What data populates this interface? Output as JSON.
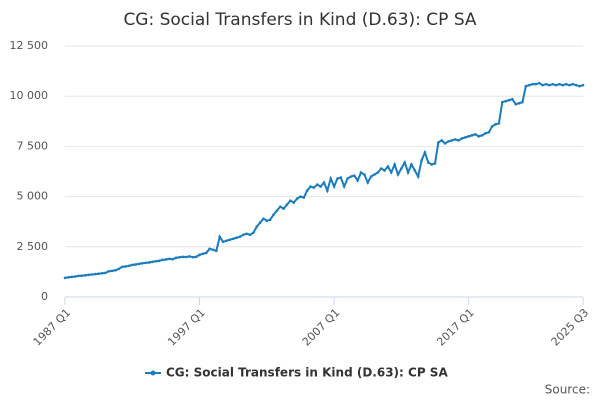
{
  "chart_data": {
    "type": "line",
    "title": "CG: Social Transfers in Kind (D.63): CP SA",
    "source": "Source:",
    "categories": [
      "1987 Q1",
      null,
      null,
      null,
      null,
      null,
      null,
      null,
      null,
      null,
      null,
      null,
      null,
      null,
      null,
      null,
      null,
      null,
      null,
      null,
      null,
      null,
      null,
      null,
      null,
      null,
      null,
      null,
      null,
      null,
      null,
      null,
      null,
      null,
      null,
      null,
      null,
      null,
      null,
      null,
      "1997 Q1",
      null,
      null,
      null,
      null,
      null,
      null,
      null,
      null,
      null,
      null,
      null,
      null,
      null,
      null,
      null,
      null,
      null,
      null,
      null,
      null,
      null,
      null,
      null,
      null,
      null,
      null,
      null,
      null,
      null,
      null,
      null,
      null,
      null,
      null,
      null,
      null,
      null,
      null,
      null,
      "2007 Q1",
      null,
      null,
      null,
      null,
      null,
      null,
      null,
      null,
      null,
      null,
      null,
      null,
      null,
      null,
      null,
      null,
      null,
      null,
      null,
      null,
      null,
      null,
      null,
      null,
      null,
      null,
      null,
      null,
      null,
      null,
      null,
      null,
      null,
      null,
      null,
      null,
      null,
      null,
      null,
      "2017 Q1",
      null,
      null,
      null,
      null,
      null,
      null,
      null,
      null,
      null,
      null,
      null,
      null,
      null,
      null,
      null,
      null,
      null,
      null,
      null,
      null,
      null,
      null,
      null,
      null,
      null,
      null,
      null,
      null,
      null,
      null,
      null,
      null,
      null,
      "2025 Q3"
    ],
    "series": [
      {
        "name": "CG: Social Transfers in Kind (D.63): CP SA",
        "color": "#1a7dbf",
        "values": [
          950,
          980,
          1000,
          1020,
          1050,
          1060,
          1080,
          1100,
          1120,
          1140,
          1160,
          1180,
          1200,
          1280,
          1300,
          1330,
          1400,
          1500,
          1520,
          1550,
          1600,
          1620,
          1650,
          1680,
          1700,
          1720,
          1750,
          1780,
          1800,
          1850,
          1870,
          1900,
          1880,
          1950,
          1980,
          2000,
          1990,
          2020,
          1980,
          2000,
          2100,
          2150,
          2200,
          2400,
          2350,
          2300,
          3000,
          2750,
          2800,
          2850,
          2900,
          2950,
          3000,
          3100,
          3150,
          3100,
          3200,
          3500,
          3700,
          3900,
          3800,
          3850,
          4100,
          4300,
          4500,
          4400,
          4600,
          4800,
          4700,
          4900,
          5000,
          4950,
          5300,
          5500,
          5450,
          5600,
          5500,
          5700,
          5300,
          5900,
          5500,
          5900,
          5950,
          5500,
          5900,
          6000,
          6050,
          5800,
          6200,
          6100,
          5700,
          6000,
          6100,
          6200,
          6400,
          6300,
          6500,
          6200,
          6600,
          6100,
          6400,
          6700,
          6200,
          6600,
          6300,
          6000,
          6800,
          7200,
          6700,
          6600,
          6650,
          7700,
          7800,
          7650,
          7750,
          7800,
          7850,
          7800,
          7900,
          7950,
          8000,
          8050,
          8100,
          8000,
          8050,
          8150,
          8200,
          8500,
          8600,
          8650,
          9700,
          9750,
          9800,
          9850,
          9600,
          9650,
          9700,
          10500,
          10550,
          10600,
          10600,
          10650,
          10550,
          10600,
          10550,
          10600,
          10550,
          10600,
          10550,
          10600,
          10550,
          10600,
          10550,
          10500,
          10550
        ]
      }
    ],
    "ylim": [
      0,
      12500
    ],
    "yticks": [
      0,
      {
        "value": 2500,
        "label": "2 500"
      },
      {
        "value": 5000,
        "label": "5 000"
      },
      {
        "value": 7500,
        "label": "7 500"
      },
      {
        "value": 10000,
        "label": "10 000"
      },
      {
        "value": 12500,
        "label": "12 500"
      }
    ],
    "grid": true,
    "legend": "bottom"
  }
}
